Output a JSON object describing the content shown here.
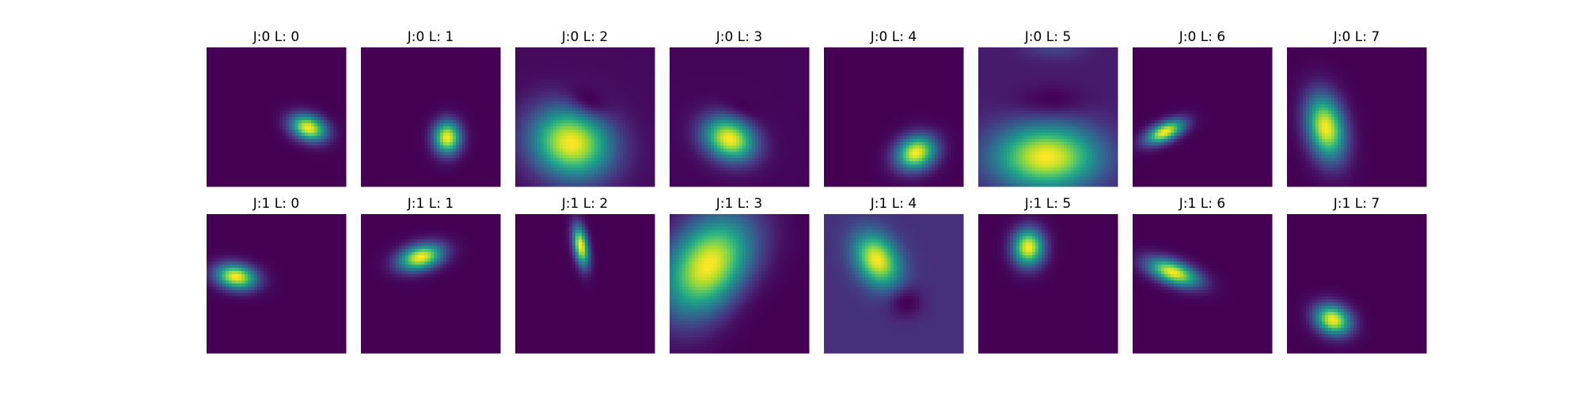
{
  "chart_data": {
    "type": "heatmap",
    "colormap": "viridis",
    "axes_visible": false,
    "grid": false,
    "rows": 2,
    "columns": 8,
    "panels": [
      {
        "title": "J:0 L: 0",
        "background": 0.0,
        "blobs": [
          {
            "cx": 0.73,
            "cy": 0.58,
            "sx": 0.09,
            "sy": 0.06,
            "angle": 20,
            "amp": 1.0
          }
        ]
      },
      {
        "title": "J:0 L: 1",
        "background": 0.0,
        "blobs": [
          {
            "cx": 0.62,
            "cy": 0.65,
            "sx": 0.065,
            "sy": 0.08,
            "angle": 0,
            "amp": 1.0
          }
        ]
      },
      {
        "title": "J:0 L: 2",
        "background": 0.18,
        "blobs": [
          {
            "cx": 0.4,
            "cy": 0.69,
            "sx": 0.2,
            "sy": 0.17,
            "angle": 20,
            "amp": 1.0
          },
          {
            "cx": 0.52,
            "cy": 0.41,
            "sx": 0.11,
            "sy": 0.07,
            "angle": 25,
            "amp": -0.18
          }
        ]
      },
      {
        "title": "J:0 L: 3",
        "background": 0.06,
        "blobs": [
          {
            "cx": 0.43,
            "cy": 0.66,
            "sx": 0.13,
            "sy": 0.1,
            "angle": 25,
            "amp": 1.0
          },
          {
            "cx": 0.51,
            "cy": 0.45,
            "sx": 0.09,
            "sy": 0.05,
            "angle": 20,
            "amp": -0.06
          }
        ]
      },
      {
        "title": "J:0 L: 4",
        "background": 0.0,
        "blobs": [
          {
            "cx": 0.66,
            "cy": 0.76,
            "sx": 0.1,
            "sy": 0.08,
            "angle": -25,
            "amp": 1.0
          }
        ]
      },
      {
        "title": "J:0 L: 5",
        "background": 0.16,
        "blobs": [
          {
            "cx": 0.49,
            "cy": 0.79,
            "sx": 0.26,
            "sy": 0.16,
            "angle": 0,
            "amp": 1.0
          },
          {
            "cx": 0.52,
            "cy": 0.4,
            "sx": 0.17,
            "sy": 0.08,
            "angle": 0,
            "amp": -0.12
          },
          {
            "cx": 0.55,
            "cy": 0.01,
            "sx": 0.14,
            "sy": 0.05,
            "angle": 0,
            "amp": 0.14
          }
        ]
      },
      {
        "title": "J:0 L: 6",
        "background": 0.0,
        "blobs": [
          {
            "cx": 0.23,
            "cy": 0.61,
            "sx": 0.1,
            "sy": 0.045,
            "angle": -25,
            "amp": 1.0
          }
        ]
      },
      {
        "title": "J:0 L: 7",
        "background": 0.0,
        "blobs": [
          {
            "cx": 0.28,
            "cy": 0.58,
            "sx": 0.09,
            "sy": 0.16,
            "angle": -12,
            "amp": 1.0
          }
        ]
      },
      {
        "title": "J:1 L: 0",
        "background": 0.0,
        "blobs": [
          {
            "cx": 0.21,
            "cy": 0.45,
            "sx": 0.1,
            "sy": 0.06,
            "angle": 10,
            "amp": 1.0
          }
        ]
      },
      {
        "title": "J:1 L: 1",
        "background": 0.0,
        "blobs": [
          {
            "cx": 0.43,
            "cy": 0.31,
            "sx": 0.11,
            "sy": 0.06,
            "angle": -15,
            "amp": 1.0
          }
        ]
      },
      {
        "title": "J:1 L: 2",
        "background": 0.0,
        "blobs": [
          {
            "cx": 0.47,
            "cy": 0.23,
            "sx": 0.035,
            "sy": 0.1,
            "angle": -10,
            "amp": 1.0
          }
        ]
      },
      {
        "title": "J:1 L: 3",
        "background": 0.08,
        "blobs": [
          {
            "cx": 0.28,
            "cy": 0.37,
            "sx": 0.19,
            "sy": 0.27,
            "angle": 35,
            "amp": 1.0
          },
          {
            "cx": 0.52,
            "cy": 0.58,
            "sx": 0.13,
            "sy": 0.22,
            "angle": 35,
            "amp": -0.07
          }
        ]
      },
      {
        "title": "J:1 L: 4",
        "background": 0.19,
        "blobs": [
          {
            "cx": 0.38,
            "cy": 0.33,
            "sx": 0.1,
            "sy": 0.14,
            "angle": -30,
            "amp": 1.0
          },
          {
            "cx": 0.58,
            "cy": 0.63,
            "sx": 0.09,
            "sy": 0.08,
            "angle": 0,
            "amp": -0.19
          }
        ]
      },
      {
        "title": "J:1 L: 5",
        "background": 0.0,
        "blobs": [
          {
            "cx": 0.36,
            "cy": 0.24,
            "sx": 0.075,
            "sy": 0.09,
            "angle": 0,
            "amp": 1.0
          }
        ]
      },
      {
        "title": "J:1 L: 6",
        "background": 0.0,
        "blobs": [
          {
            "cx": 0.29,
            "cy": 0.42,
            "sx": 0.13,
            "sy": 0.055,
            "angle": 20,
            "amp": 1.0
          }
        ]
      },
      {
        "title": "J:1 L: 7",
        "background": 0.0,
        "blobs": [
          {
            "cx": 0.33,
            "cy": 0.76,
            "sx": 0.09,
            "sy": 0.07,
            "angle": 25,
            "amp": 1.0
          }
        ]
      }
    ]
  }
}
